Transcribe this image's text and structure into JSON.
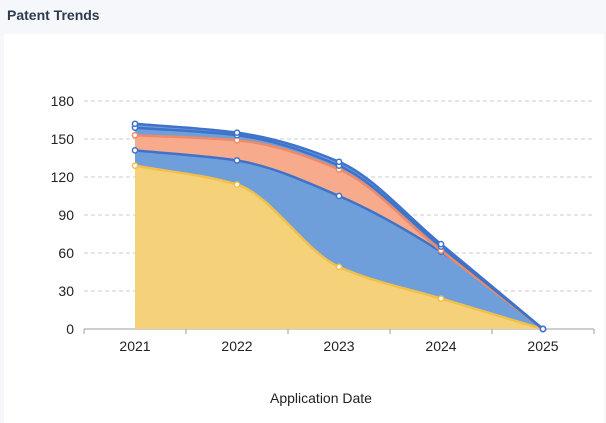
{
  "header": {
    "title": "Patent Trends"
  },
  "chart_data": {
    "type": "area",
    "stacked": true,
    "smooth": true,
    "x": [
      "2021",
      "2022",
      "2023",
      "2024",
      "2025"
    ],
    "xlabel": "Application Date",
    "ylabel": "",
    "ylim": [
      0,
      180
    ],
    "yticks": [
      0,
      30,
      60,
      90,
      120,
      150,
      180
    ],
    "grid": "horizontal-dashed",
    "legend": "none",
    "series": [
      {
        "values": [
          129,
          114,
          49,
          24,
          0
        ],
        "color": "#f5d27a",
        "stroke": "#f2c04a"
      },
      {
        "values": [
          12,
          19,
          56,
          37,
          0
        ],
        "color": "#6f9fdb",
        "stroke": "#3f72c9"
      },
      {
        "values": [
          12,
          16,
          21,
          1,
          0
        ],
        "color": "#f7aa8c",
        "stroke": "#f08a66"
      },
      {
        "values": [
          6,
          4,
          3,
          3,
          0
        ],
        "color": "#6f9fdb",
        "stroke": "#3f72c9"
      },
      {
        "values": [
          3,
          2,
          3,
          2,
          0
        ],
        "color": "#6f9fdb",
        "stroke": "#3f72c9"
      }
    ]
  }
}
